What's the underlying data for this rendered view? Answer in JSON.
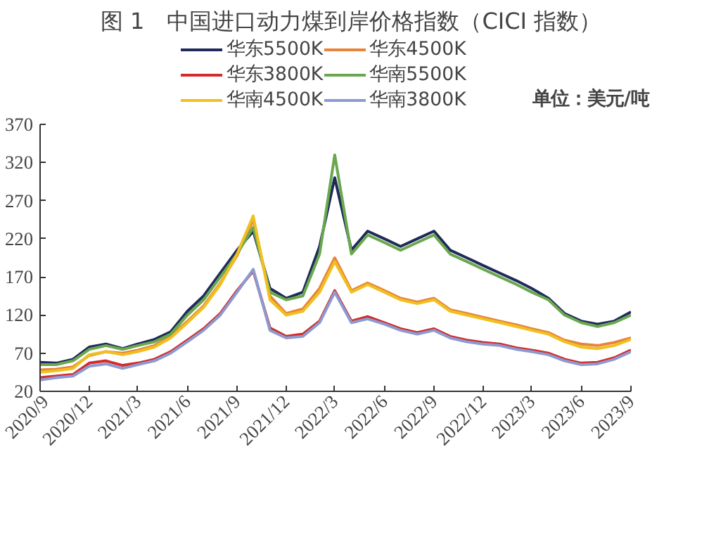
{
  "chart_data": {
    "type": "line",
    "title": "图 1　中国进口动力煤到岸价格指数（CICI 指数）",
    "ylabel": "单位：美元/吨",
    "x": [
      "2020-09",
      "2020-10",
      "2020-11",
      "2020-12",
      "2021-01",
      "2021-02",
      "2021-03",
      "2021-04",
      "2021-05",
      "2021-06",
      "2021-07",
      "2021-08",
      "2021-09",
      "2021-10",
      "2021-11",
      "2021-12",
      "2022-01",
      "2022-02",
      "2022-03",
      "2022-04",
      "2022-05",
      "2022-06",
      "2022-07",
      "2022-08",
      "2022-09",
      "2022-10",
      "2022-11",
      "2022-12",
      "2023-01",
      "2023-02",
      "2023-03",
      "2023-04",
      "2023-05",
      "2023-06",
      "2023-07",
      "2023-08",
      "2023-09"
    ],
    "series": [
      {
        "name": "华东5500K",
        "color": "#1f2a5a",
        "values": [
          58,
          57,
          62,
          78,
          82,
          76,
          82,
          88,
          98,
          125,
          145,
          175,
          205,
          230,
          155,
          142,
          150,
          210,
          300,
          205,
          230,
          220,
          210,
          220,
          230,
          205,
          195,
          185,
          175,
          165,
          155,
          142,
          122,
          112,
          108,
          112,
          124
        ]
      },
      {
        "name": "华东4500K",
        "color": "#e8843a",
        "values": [
          48,
          49,
          52,
          67,
          72,
          70,
          74,
          80,
          92,
          112,
          132,
          162,
          198,
          245,
          145,
          122,
          128,
          155,
          195,
          152,
          162,
          152,
          142,
          137,
          142,
          127,
          122,
          117,
          112,
          107,
          102,
          97,
          87,
          82,
          80,
          84,
          90
        ]
      },
      {
        "name": "华东3800K",
        "color": "#d42a2a",
        "values": [
          38,
          40,
          42,
          57,
          60,
          54,
          57,
          62,
          72,
          87,
          102,
          122,
          152,
          178,
          103,
          92,
          95,
          112,
          152,
          112,
          118,
          110,
          102,
          97,
          102,
          92,
          87,
          84,
          82,
          77,
          74,
          70,
          62,
          57,
          58,
          64,
          74
        ]
      },
      {
        "name": "华南5500K",
        "color": "#6aa84f",
        "values": [
          55,
          55,
          60,
          75,
          80,
          75,
          80,
          85,
          95,
          120,
          140,
          170,
          200,
          235,
          150,
          140,
          145,
          200,
          330,
          200,
          225,
          215,
          205,
          215,
          225,
          200,
          190,
          180,
          170,
          160,
          150,
          140,
          120,
          110,
          105,
          110,
          120
        ]
      },
      {
        "name": "华南4500K",
        "color": "#f0c020",
        "values": [
          45,
          47,
          50,
          68,
          72,
          68,
          72,
          78,
          90,
          110,
          130,
          160,
          200,
          250,
          140,
          120,
          125,
          150,
          190,
          150,
          160,
          150,
          140,
          135,
          140,
          125,
          120,
          115,
          110,
          105,
          100,
          95,
          85,
          78,
          76,
          80,
          88
        ]
      },
      {
        "name": "华南3800K",
        "color": "#8c9ad0",
        "values": [
          35,
          38,
          40,
          53,
          56,
          50,
          55,
          60,
          70,
          85,
          100,
          120,
          150,
          180,
          100,
          90,
          92,
          110,
          150,
          110,
          115,
          108,
          100,
          95,
          100,
          90,
          85,
          82,
          80,
          75,
          72,
          68,
          60,
          55,
          56,
          62,
          72
        ]
      }
    ],
    "xlim": [
      "2020-09",
      "2023-09"
    ],
    "xticks": [
      {
        "value": "2020-09",
        "label": "2020/9"
      },
      {
        "value": "2020-12",
        "label": "2020/12"
      },
      {
        "value": "2021-03",
        "label": "2021/3"
      },
      {
        "value": "2021-06",
        "label": "2021/6"
      },
      {
        "value": "2021-09",
        "label": "2021/9"
      },
      {
        "value": "2021-12",
        "label": "2021/12"
      },
      {
        "value": "2022-03",
        "label": "2022/3"
      },
      {
        "value": "2022-06",
        "label": "2022/6"
      },
      {
        "value": "2022-09",
        "label": "2022/9"
      },
      {
        "value": "2022-12",
        "label": "2022/12"
      },
      {
        "value": "2023-03",
        "label": "2023/3"
      },
      {
        "value": "2023-06",
        "label": "2023/6"
      },
      {
        "value": "2023-09",
        "label": "2023/9"
      }
    ],
    "ylim": [
      20,
      370
    ],
    "yticks": [
      20,
      70,
      120,
      170,
      220,
      270,
      320,
      370
    ],
    "grid": false,
    "legend": "top",
    "marker": "none",
    "line_style": "solid"
  }
}
